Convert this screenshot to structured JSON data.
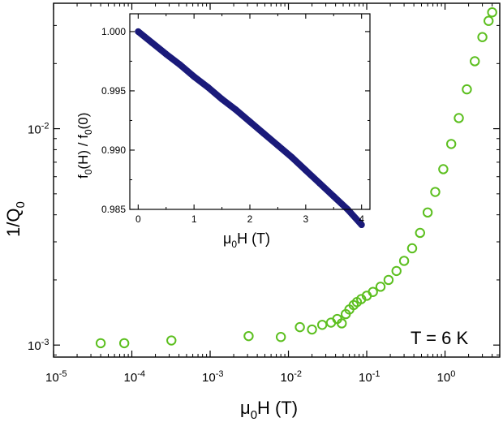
{
  "chart_data": [
    {
      "id": "main",
      "type": "scatter",
      "xscale": "log",
      "yscale": "log",
      "xlim": [
        1e-05,
        5
      ],
      "ylim": [
        0.00088,
        0.038
      ],
      "xlabel": {
        "base": "μ",
        "sub": "0",
        "rest": "H  (T)"
      },
      "ylabel": {
        "base": "1/Q",
        "sub": "0"
      },
      "x_ticks": [
        {
          "value": 1e-05,
          "base": "10",
          "exp": "-5"
        },
        {
          "value": 0.0001,
          "base": "10",
          "exp": "-4"
        },
        {
          "value": 0.001,
          "base": "10",
          "exp": "-3"
        },
        {
          "value": 0.01,
          "base": "10",
          "exp": "-2"
        },
        {
          "value": 0.1,
          "base": "10",
          "exp": "-1"
        },
        {
          "value": 1,
          "base": "10",
          "exp": "0"
        }
      ],
      "y_ticks": [
        {
          "value": 0.001,
          "base": "10",
          "exp": "-3"
        },
        {
          "value": 0.01,
          "base": "10",
          "exp": "-2"
        }
      ],
      "annotation": "T = 6 K",
      "marker_color": "#5cbf1f",
      "series": [
        {
          "name": "1/Q0",
          "x": [
            4e-05,
            8e-05,
            0.00032,
            0.0031,
            0.008,
            0.014,
            0.02,
            0.027,
            0.035,
            0.042,
            0.048,
            0.054,
            0.06,
            0.068,
            0.075,
            0.085,
            0.1,
            0.12,
            0.15,
            0.19,
            0.24,
            0.3,
            0.38,
            0.48,
            0.6,
            0.75,
            0.95,
            1.2,
            1.5,
            1.9,
            2.4,
            3.0,
            3.6,
            4.0
          ],
          "y": [
            0.00102,
            0.00102,
            0.00105,
            0.0011,
            0.00109,
            0.00121,
            0.00118,
            0.00124,
            0.00127,
            0.00132,
            0.00126,
            0.00139,
            0.00146,
            0.00153,
            0.00158,
            0.00163,
            0.00169,
            0.00176,
            0.00186,
            0.002,
            0.0022,
            0.00245,
            0.0028,
            0.0033,
            0.0041,
            0.0051,
            0.0065,
            0.0085,
            0.0112,
            0.0152,
            0.0205,
            0.0265,
            0.0315,
            0.0345
          ]
        }
      ]
    },
    {
      "id": "inset",
      "type": "scatter",
      "xlim": [
        -0.15,
        4.15
      ],
      "ylim": [
        0.985,
        1.0015
      ],
      "xlabel": {
        "base": "μ",
        "sub": "0",
        "rest": "H  (T)"
      },
      "ylabel": {
        "p1": "f",
        "s1": "0",
        "p2": "(H) / f",
        "s2": "0",
        "p3": "(0)"
      },
      "x_ticks": [
        0,
        1,
        2,
        3,
        4
      ],
      "y_ticks": [
        "0.985",
        "0.990",
        "0.995",
        "1.000"
      ],
      "marker_color": "#1a1a7a",
      "series": [
        {
          "name": "f0(H)/f0(0)",
          "x": [
            0,
            0.25,
            0.5,
            0.75,
            1,
            1.25,
            1.5,
            1.75,
            2,
            2.25,
            2.5,
            2.75,
            3,
            3.25,
            3.5,
            3.75,
            4
          ],
          "y": [
            1.0,
            0.99905,
            0.9981,
            0.9972,
            0.9962,
            0.9953,
            0.9943,
            0.9934,
            0.9924,
            0.9914,
            0.9904,
            0.9894,
            0.9883,
            0.9872,
            0.9861,
            0.985,
            0.9837
          ]
        }
      ]
    }
  ]
}
